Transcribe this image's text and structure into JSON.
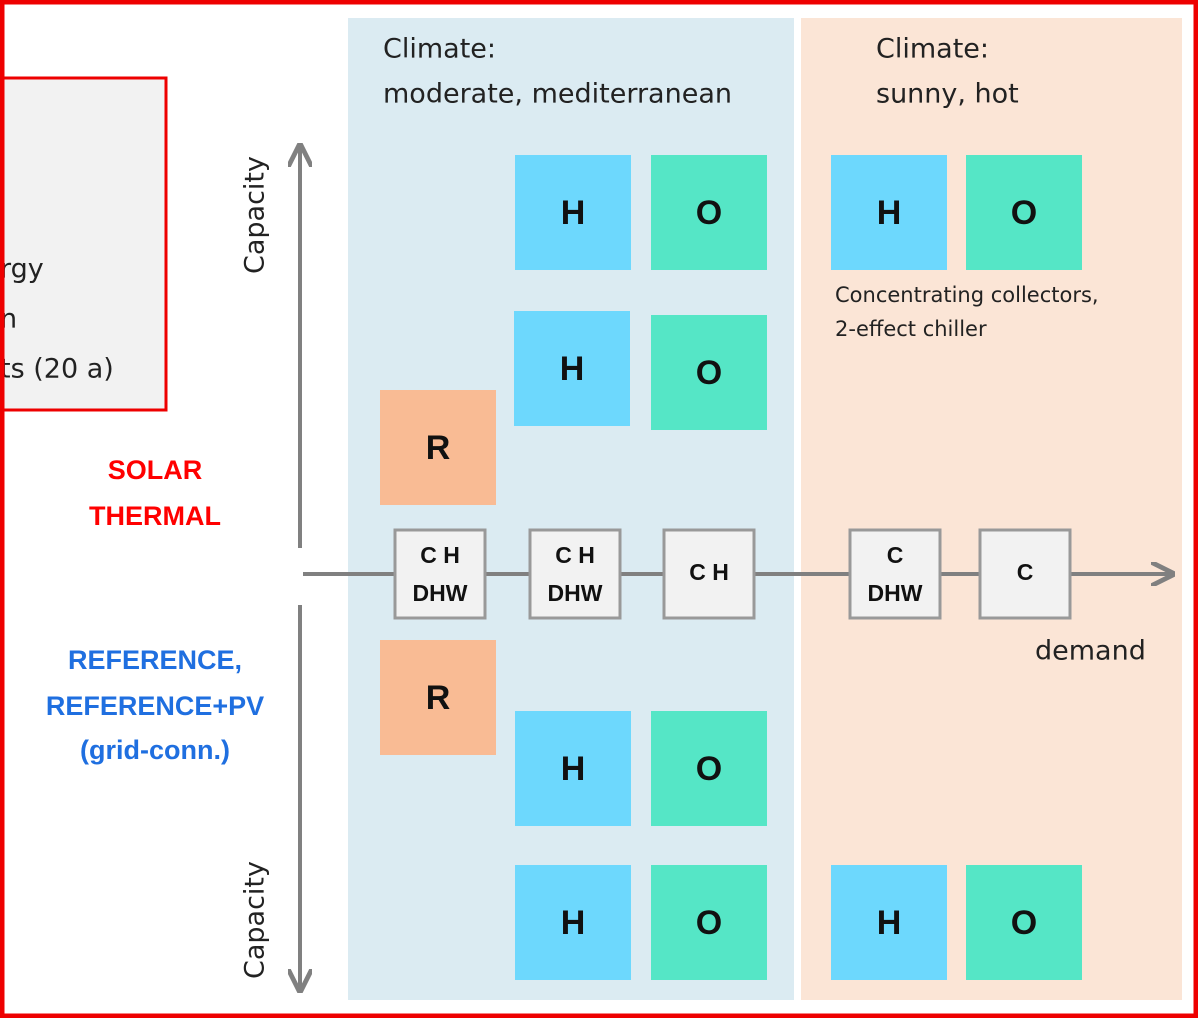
{
  "left_box": {
    "lines": [
      "rgy",
      "n",
      "ts (20 a)"
    ]
  },
  "side_labels": {
    "solar_thermal": [
      "SOLAR",
      "THERMAL"
    ],
    "reference": [
      "REFERENCE,",
      "REFERENCE+PV",
      "(grid-conn.)"
    ]
  },
  "axis": {
    "capacity_top": "Capacity",
    "capacity_bottom": "Capacity",
    "demand": "demand"
  },
  "climates": [
    {
      "lines": [
        "Climate:",
        "moderate, mediterranean"
      ]
    },
    {
      "lines": [
        "Climate:",
        "sunny, hot"
      ]
    }
  ],
  "note": [
    "Concentrating collectors,",
    "2-effect chiller"
  ],
  "demand_nodes": [
    {
      "lines": [
        "C H",
        "DHW"
      ]
    },
    {
      "lines": [
        "C H",
        "DHW"
      ]
    },
    {
      "lines": [
        "C H"
      ]
    },
    {
      "lines": [
        "C",
        "DHW"
      ]
    },
    {
      "lines": [
        "C"
      ]
    }
  ],
  "blocks": [
    "H",
    "O",
    "H",
    "O",
    "H",
    "O",
    "R",
    "R",
    "H",
    "O",
    "H",
    "O",
    "H",
    "O"
  ]
}
